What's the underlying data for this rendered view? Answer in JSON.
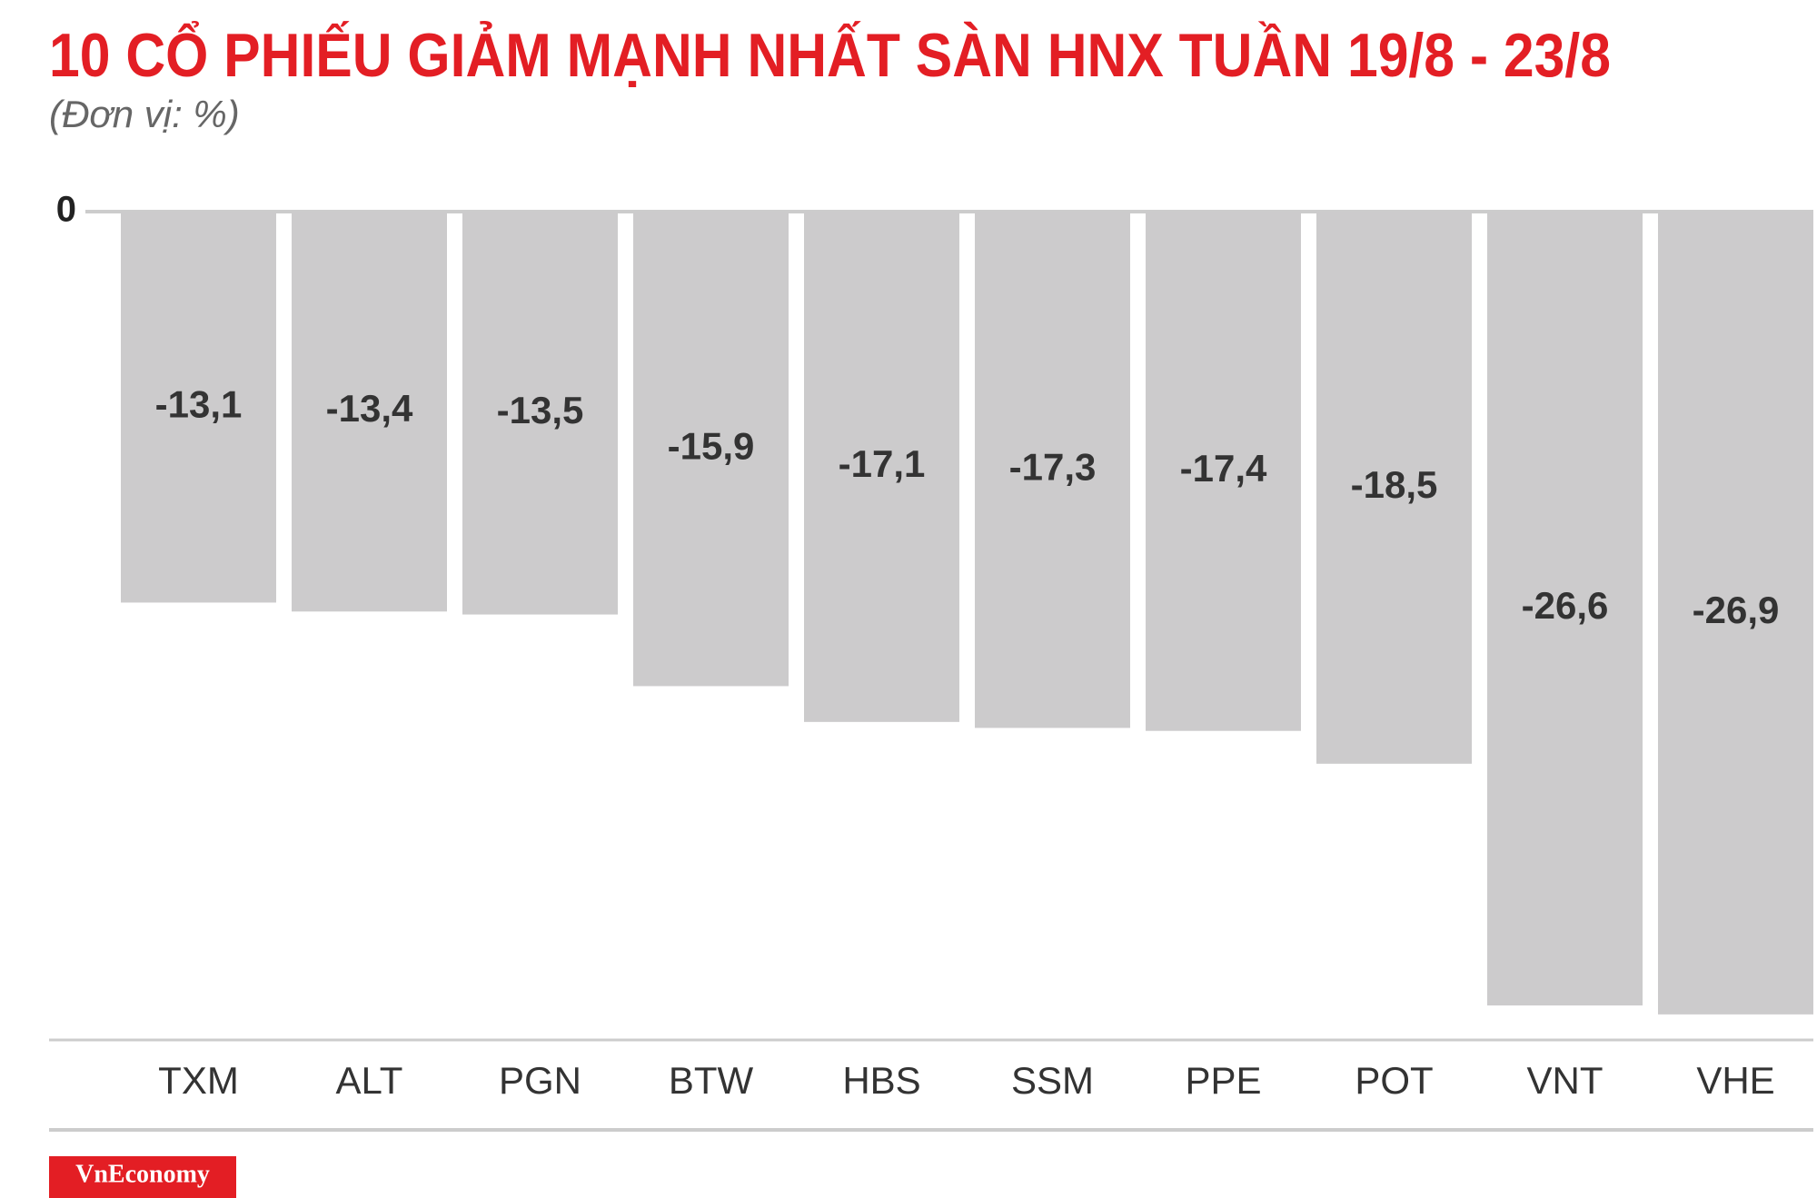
{
  "chart_data": {
    "type": "bar",
    "title": "10 CỔ PHIẾU GIẢM MẠNH NHẤT SÀN HNX TUẦN 19/8 - 23/8",
    "subtitle": "(Đơn vị: %)",
    "categories": [
      "TXM",
      "ALT",
      "PGN",
      "BTW",
      "HBS",
      "SSM",
      "PPE",
      "POT",
      "VNT",
      "VHE"
    ],
    "values": [
      -13.1,
      -13.4,
      -13.5,
      -15.9,
      -17.1,
      -17.3,
      -17.4,
      -18.5,
      -26.6,
      -26.9
    ],
    "value_labels": [
      "-13,1",
      "-13,4",
      "-13,5",
      "-15,9",
      "-17,1",
      "-17,3",
      "-17,4",
      "-18,5",
      "-26,6",
      "-26,9"
    ],
    "color": "#cccbcc",
    "ylim": [
      -28,
      0
    ],
    "yticks": [
      0
    ],
    "grid": true
  },
  "logo": "VnEconomy"
}
